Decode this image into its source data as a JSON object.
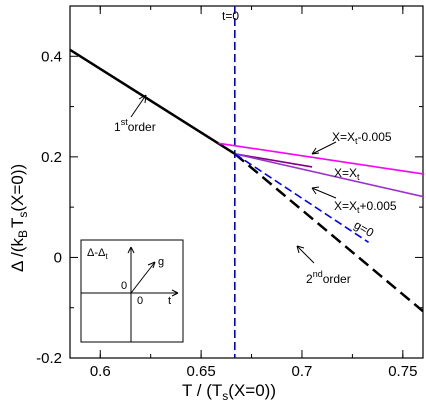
{
  "chart_data": {
    "type": "line",
    "xlabel": {
      "main": "T / (T",
      "sub": "s",
      "rest": "(X=0))"
    },
    "ylabel": {
      "a": "Δ /(k",
      "b_sub": "B",
      "c": "T",
      "d_sub": "s",
      "e": "(X=0))"
    },
    "xlim": [
      0.585,
      0.76
    ],
    "ylim": [
      -0.2,
      0.5
    ],
    "xticks": [
      "0.6",
      "0.65",
      "0.7",
      "0.75"
    ],
    "yticks": [
      "-0.2",
      "0",
      "0.2",
      "0.4"
    ],
    "xtick_values": [
      0.6,
      0.65,
      0.7,
      0.75
    ],
    "ytick_values": [
      -0.2,
      0,
      0.2,
      0.4
    ],
    "series": [
      {
        "key": "first_order",
        "color": "#000000",
        "style": "solid",
        "x": [
          0.585,
          0.6667
        ],
        "y": [
          0.413,
          0.206
        ]
      },
      {
        "key": "second_order",
        "color": "#000000",
        "style": "dashed",
        "x": [
          0.6667,
          0.76
        ],
        "y": [
          0.206,
          -0.107
        ]
      },
      {
        "key": "x_minus",
        "color": "#ff00ff",
        "style": "solid",
        "x": [
          0.6586,
          0.76
        ],
        "y": [
          0.227,
          0.166
        ]
      },
      {
        "key": "x_eq",
        "color": "#800080",
        "style": "solid",
        "x": [
          0.6667,
          0.705
        ],
        "y": [
          0.206,
          0.18
        ]
      },
      {
        "key": "x_plus",
        "color": "#9b30d0",
        "style": "solid",
        "x": [
          0.6667,
          0.76
        ],
        "y": [
          0.206,
          0.121
        ]
      },
      {
        "key": "g0",
        "color": "#0000ff",
        "style": "dashed",
        "x": [
          0.6667,
          0.733
        ],
        "y": [
          0.206,
          0.03
        ]
      }
    ],
    "vline": {
      "x": 0.6667,
      "color": "#0000cc",
      "label": "t=0"
    },
    "annotations": [
      {
        "key": "first",
        "main": "1",
        "sup": "st",
        "rest": "order"
      },
      {
        "key": "second",
        "main": "2",
        "sup": "nd",
        "rest": "order"
      },
      {
        "key": "xminus",
        "text": "X=X",
        "sub": "t",
        "rest": "-0.005"
      },
      {
        "key": "xeq",
        "text": "X=X",
        "sub": "t",
        "rest": ""
      },
      {
        "key": "xplus",
        "text": "X=X",
        "sub": "t",
        "rest": "+0.005"
      },
      {
        "key": "g0",
        "text": "g=0"
      }
    ],
    "inset": {
      "ylabel": {
        "a": "Δ-Δ",
        "sub": "t"
      },
      "xlabel": "t",
      "glabel": "g",
      "origin_x": "0",
      "origin_y": "0"
    }
  }
}
